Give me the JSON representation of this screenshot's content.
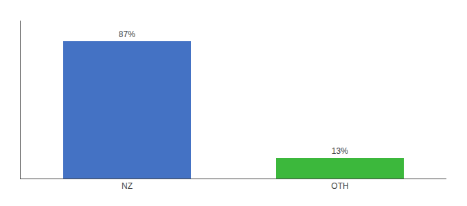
{
  "chart_data": {
    "type": "bar",
    "categories": [
      "NZ",
      "OTH"
    ],
    "values": [
      87,
      13
    ],
    "colors": [
      "#4472c4",
      "#3cb83c"
    ],
    "value_labels": [
      "87%",
      "13%"
    ],
    "data_labels": true,
    "ylim": [
      0,
      100
    ],
    "tick_labels": "x"
  }
}
